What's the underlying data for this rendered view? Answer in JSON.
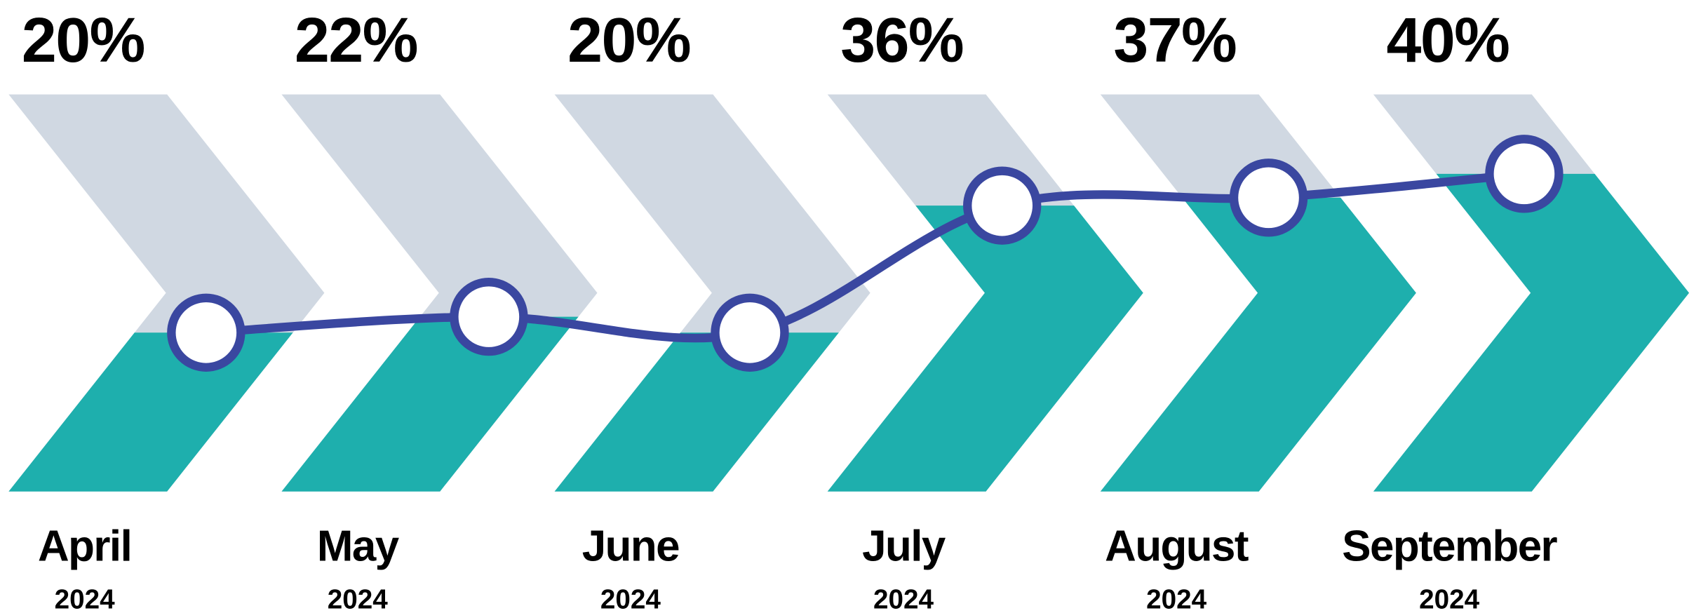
{
  "chart_data": {
    "type": "chevron",
    "categories": [
      "April",
      "May",
      "June",
      "July",
      "August",
      "September"
    ],
    "years": [
      "2024",
      "2024",
      "2024",
      "2024",
      "2024",
      "2024"
    ],
    "values": [
      20,
      22,
      20,
      36,
      37,
      40
    ],
    "value_labels": [
      "20%",
      "22%",
      "20%",
      "36%",
      "37%",
      "40%"
    ],
    "ylim": [
      0,
      50
    ],
    "empty_color": "#d0d8e2",
    "fill_color": "#1eafad",
    "line_color": "#3a47a0"
  }
}
